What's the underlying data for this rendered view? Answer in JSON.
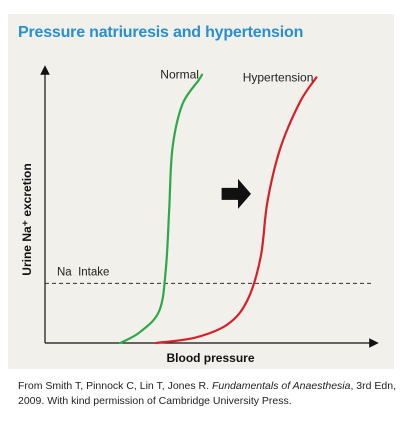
{
  "title": "Pressure natriuresis and hypertension",
  "caption": {
    "pre": "From Smith T, Pinnock C, Lin T, Jones R. ",
    "book": "Fundamentals of Anaesthesia",
    "post": ", 3rd Edn, 2009. With kind permission of Cambridge University Press."
  },
  "chart_data": {
    "type": "line",
    "title": "Pressure natriuresis and hypertension",
    "xlabel": "Blood pressure",
    "ylabel": "Urine Na⁺ excretion",
    "xlim": [
      0,
      100
    ],
    "ylim": [
      0,
      100
    ],
    "grid": false,
    "x_ticks": [],
    "y_ticks": [],
    "series": [
      {
        "name": "Normal",
        "color": "#2ea84a",
        "points": [
          [
            23,
            0
          ],
          [
            29,
            4
          ],
          [
            35,
            12
          ],
          [
            37,
            28
          ],
          [
            38,
            50
          ],
          [
            39,
            72
          ],
          [
            42,
            88
          ],
          [
            47,
            97
          ],
          [
            48,
            99
          ]
        ]
      },
      {
        "name": "Hypertension",
        "color": "#d6202a",
        "points": [
          [
            34,
            0
          ],
          [
            46,
            2
          ],
          [
            56,
            7
          ],
          [
            62,
            16
          ],
          [
            66,
            32
          ],
          [
            68,
            52
          ],
          [
            72,
            72
          ],
          [
            78,
            89
          ],
          [
            83,
            98
          ]
        ]
      }
    ],
    "reference_line": {
      "label": "Na  Intake",
      "y": 22,
      "style": "dashed"
    },
    "annotation": {
      "type": "arrow",
      "direction": "right",
      "x": [
        54,
        63
      ],
      "y": 55
    }
  }
}
